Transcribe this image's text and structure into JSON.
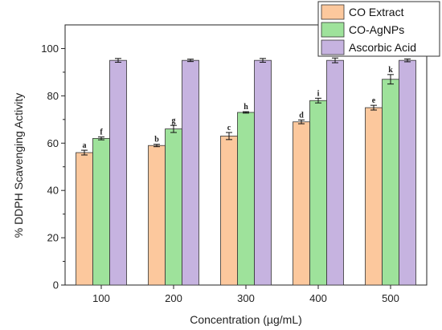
{
  "chart_data": {
    "type": "bar",
    "title": "",
    "xlabel": "Concentration (µg/mL)",
    "ylabel": "% DDPH Scavenging Activity",
    "categories": [
      "100",
      "200",
      "300",
      "400",
      "500"
    ],
    "ylim": [
      0,
      110
    ],
    "yticks": [
      0,
      20,
      40,
      60,
      80,
      100
    ],
    "grid": false,
    "legend_position": "top-right",
    "series": [
      {
        "name": "CO Extract",
        "color": "#fcc89d",
        "values": [
          56,
          59,
          63,
          69,
          75
        ],
        "errors": [
          1,
          0.5,
          1.5,
          0.8,
          1
        ],
        "labels": [
          "a",
          "b",
          "c",
          "d",
          "e"
        ]
      },
      {
        "name": "CO-AgNPs",
        "color": "#9ee29b",
        "values": [
          62,
          66,
          73,
          78,
          87
        ],
        "errors": [
          0.6,
          1.5,
          0.3,
          1,
          2
        ],
        "labels": [
          "f",
          "g",
          "h",
          "i",
          "k"
        ]
      },
      {
        "name": "Ascorbic Acid",
        "color": "#c6b3e0",
        "values": [
          95,
          95,
          95,
          95,
          95
        ],
        "errors": [
          0.8,
          0.5,
          0.8,
          1,
          0.6
        ],
        "labels": [
          "",
          "",
          "",
          "",
          ""
        ]
      }
    ]
  }
}
